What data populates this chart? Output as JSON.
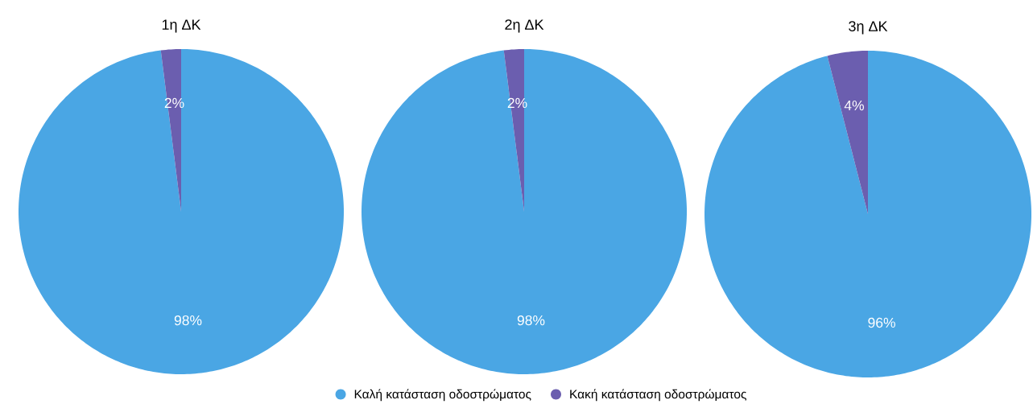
{
  "chart_data": [
    {
      "type": "pie",
      "title": "1η ΔΚ",
      "values": [
        98,
        2
      ],
      "colors": [
        "#4aa6e4",
        "#6b5eaf"
      ],
      "value_labels": [
        "98%",
        "2%"
      ]
    },
    {
      "type": "pie",
      "title": "2η ΔΚ",
      "categories": [
        "Καλή κατάσταση οδοστρώματος",
        "Κακή κατάσταση οδοστρώματος"
      ],
      "values": [
        98,
        2
      ],
      "colors": [
        "#4aa6e4",
        "#6b5eaf"
      ],
      "value_labels": [
        "98%",
        "2%"
      ],
      "legend": "bottom"
    },
    {
      "type": "pie",
      "title": "3η ΔΚ",
      "values": [
        96,
        4
      ],
      "colors": [
        "#4aa6e4",
        "#6b5eaf"
      ],
      "value_labels": [
        "96%",
        "4%"
      ]
    }
  ]
}
